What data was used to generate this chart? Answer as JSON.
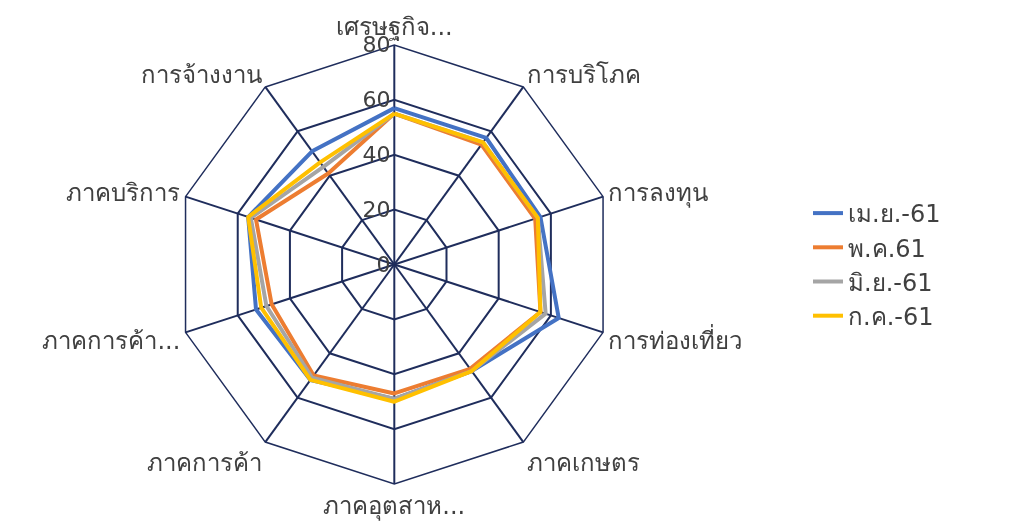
{
  "chart_data": {
    "type": "radar",
    "categories": [
      "เศรษฐกิจ...",
      "การบริโภค",
      "การลงทุน",
      "การท่องเที่ยว",
      "ภาคเกษตร",
      "ภาคอุตสาห...",
      "ภาคการค้า",
      "ภาคการค้า...",
      "ภาคบริการ",
      "การจ้างงาน"
    ],
    "series": [
      {
        "name": "เม.ย.-61",
        "color": "#4472c4",
        "values": [
          57,
          57,
          56,
          63,
          48,
          49,
          52,
          53,
          56,
          51
        ]
      },
      {
        "name": "พ.ค.61",
        "color": "#ed7d31",
        "values": [
          55,
          54,
          54,
          56,
          47,
          47,
          50,
          47,
          53,
          41
        ]
      },
      {
        "name": "มิ.ย.-61",
        "color": "#a5a5a5",
        "values": [
          55,
          55,
          55,
          58,
          48,
          49,
          51,
          49,
          55,
          44
        ]
      },
      {
        "name": "ก.ค.-61",
        "color": "#ffc000",
        "values": [
          55,
          55,
          55,
          56,
          48,
          50,
          52,
          51,
          56,
          46
        ]
      }
    ],
    "ylim": [
      0,
      80
    ],
    "yticks": [
      0,
      20,
      40,
      60,
      80
    ],
    "grid": true,
    "legend": "right",
    "marker": "none",
    "line_style": "solid"
  }
}
